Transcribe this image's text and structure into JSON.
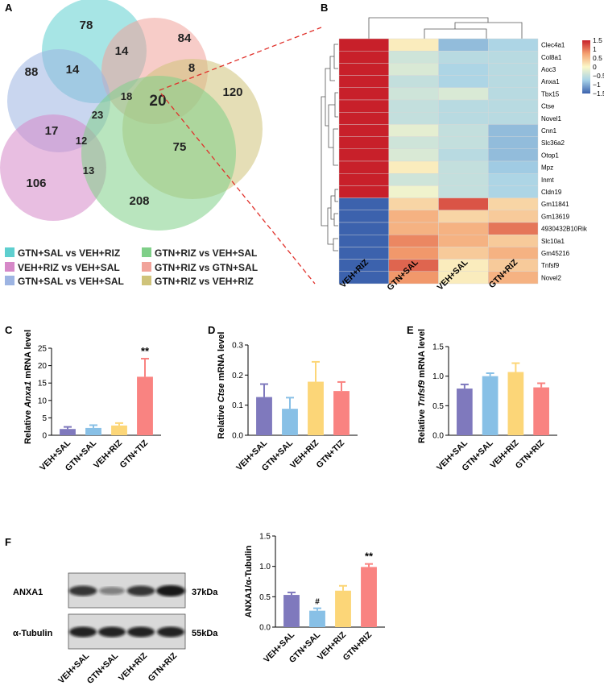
{
  "panels": {
    "A": "A",
    "B": "B",
    "C": "C",
    "D": "D",
    "E": "E",
    "F": "F"
  },
  "venn": {
    "regions": [
      "78",
      "14",
      "84",
      "88",
      "14",
      "8",
      "120",
      "18",
      "20",
      "23",
      "17",
      "12",
      "75",
      "106",
      "13",
      "208"
    ],
    "legend": [
      "GTN+SAL vs VEH+RIZ",
      "GTN+RIZ vs VEH+SAL",
      "VEH+RIZ vs VEH+SAL",
      "GTN+RIZ vs GTN+SAL",
      "GTN+SAL vs VEH+SAL",
      "GTN+RIZ vs VEH+RIZ"
    ],
    "colors": [
      "#5ecfcf",
      "#7fcf88",
      "#d688c8",
      "#f1a39a",
      "#9db4e2",
      "#cfc37a"
    ]
  },
  "heatmap": {
    "genes": [
      "Clec4a1",
      "Col8a1",
      "Aoc3",
      "Anxa1",
      "Tbx15",
      "Ctse",
      "Novel1",
      "Cnn1",
      "Slc36a2",
      "Otop1",
      "Mpz",
      "Inmt",
      "Cldn19",
      "Gm11841",
      "Gm13619",
      "4930432B10Rik",
      "Slc10a1",
      "Gm45216",
      "Tnfsf9",
      "Novel2"
    ],
    "columns": [
      "VEH+RIZ",
      "GTN+SAL",
      "VEH+SAL",
      "GTN+RIZ"
    ],
    "scale_ticks": [
      "1.5",
      "1",
      "0.5",
      "0",
      "−0.5",
      "−1",
      "−1.5"
    ],
    "values": [
      [
        1.5,
        0.1,
        -0.9,
        -0.7
      ],
      [
        1.5,
        -0.4,
        -0.6,
        -0.6
      ],
      [
        1.5,
        -0.3,
        -0.7,
        -0.6
      ],
      [
        1.5,
        -0.5,
        -0.7,
        -0.6
      ],
      [
        1.5,
        -0.4,
        -0.3,
        -0.6
      ],
      [
        1.5,
        -0.5,
        -0.6,
        -0.6
      ],
      [
        1.5,
        -0.5,
        -0.6,
        -0.6
      ],
      [
        1.5,
        -0.2,
        -0.5,
        -0.9
      ],
      [
        1.5,
        -0.4,
        -0.5,
        -0.9
      ],
      [
        1.5,
        -0.3,
        -0.6,
        -0.9
      ],
      [
        1.5,
        0.1,
        -0.5,
        -0.8
      ],
      [
        1.5,
        -0.4,
        -0.5,
        -0.7
      ],
      [
        1.5,
        -0.1,
        -0.5,
        -0.7
      ],
      [
        -1.5,
        0.3,
        1.2,
        0.3
      ],
      [
        -1.5,
        0.6,
        0.3,
        0.4
      ],
      [
        -1.5,
        0.6,
        0.6,
        1.0
      ],
      [
        -1.5,
        0.9,
        0.6,
        0.4
      ],
      [
        -1.5,
        0.8,
        0.4,
        0.6
      ],
      [
        -1.5,
        1.1,
        0.1,
        0.4
      ],
      [
        -1.5,
        0.8,
        0.1,
        0.6
      ]
    ]
  },
  "chart_data": [
    {
      "panel": "C",
      "type": "bar",
      "categories": [
        "VEH+SAL",
        "GTN+SAL",
        "VEH+RIZ",
        "GTN+TIZ"
      ],
      "values": [
        1.8,
        2.1,
        2.8,
        16.8
      ],
      "errors": [
        0.6,
        0.8,
        0.7,
        5.2
      ],
      "ylim": [
        0,
        25
      ],
      "yticks": [
        "0",
        "5",
        "10",
        "15",
        "20",
        "25"
      ],
      "ylabel_pre": "Relative ",
      "ylabel_gene": "Anxa1",
      "ylabel_post": " mRNA level",
      "annotations": [
        "",
        "",
        "",
        "**"
      ]
    },
    {
      "panel": "D",
      "type": "bar",
      "categories": [
        "VEH+SAL",
        "GTN+SAL",
        "VEH+RIZ",
        "GTN+TIZ"
      ],
      "values": [
        0.127,
        0.088,
        0.178,
        0.147
      ],
      "errors": [
        0.043,
        0.037,
        0.066,
        0.03
      ],
      "ylim": [
        0,
        0.3
      ],
      "yticks": [
        "0.0",
        "0.1",
        "0.2",
        "0.3"
      ],
      "ylabel_pre": "Relative ",
      "ylabel_gene": "Ctse",
      "ylabel_post": " mRNA level",
      "annotations": [
        "",
        "",
        "",
        ""
      ]
    },
    {
      "panel": "E",
      "type": "bar",
      "categories": [
        "VEH+SAL",
        "GTN+SAL",
        "VEH+RIZ",
        "GTN+RIZ"
      ],
      "values": [
        0.79,
        1.0,
        1.07,
        0.81
      ],
      "errors": [
        0.07,
        0.05,
        0.15,
        0.07
      ],
      "ylim": [
        0,
        1.5
      ],
      "yticks": [
        "0.0",
        "0.5",
        "1.0",
        "1.5"
      ],
      "ylabel_pre": "Relative ",
      "ylabel_gene": "Tnfsf9",
      "ylabel_post": " mRNA level",
      "annotations": [
        "",
        "",
        "",
        ""
      ]
    },
    {
      "panel": "F",
      "type": "bar",
      "categories": [
        "VEH+SAL",
        "GTN+SAL",
        "VEH+RIZ",
        "GTN+RIZ"
      ],
      "values": [
        0.53,
        0.27,
        0.6,
        0.99
      ],
      "errors": [
        0.04,
        0.04,
        0.08,
        0.05
      ],
      "ylim": [
        0,
        1.5
      ],
      "yticks": [
        "0.0",
        "0.5",
        "1.0",
        "1.5"
      ],
      "ylabel_pre": "ANXA1/α-Tubulin",
      "ylabel_gene": "",
      "ylabel_post": "",
      "annotations": [
        "",
        "#",
        "",
        "**"
      ]
    }
  ],
  "bar_colors": [
    "#7f79bd",
    "#88c0e6",
    "#fcd678",
    "#f98381"
  ],
  "western": {
    "row1_label": "ANXA1",
    "row1_size": "37kDa",
    "row2_label": "α-Tubulin",
    "row2_size": "55kDa",
    "lanes": [
      "VEH+SAL",
      "GTN+SAL",
      "VEH+RIZ",
      "GTN+RIZ"
    ],
    "anxa1_intensity": [
      0.8,
      0.3,
      0.8,
      1.0
    ]
  }
}
